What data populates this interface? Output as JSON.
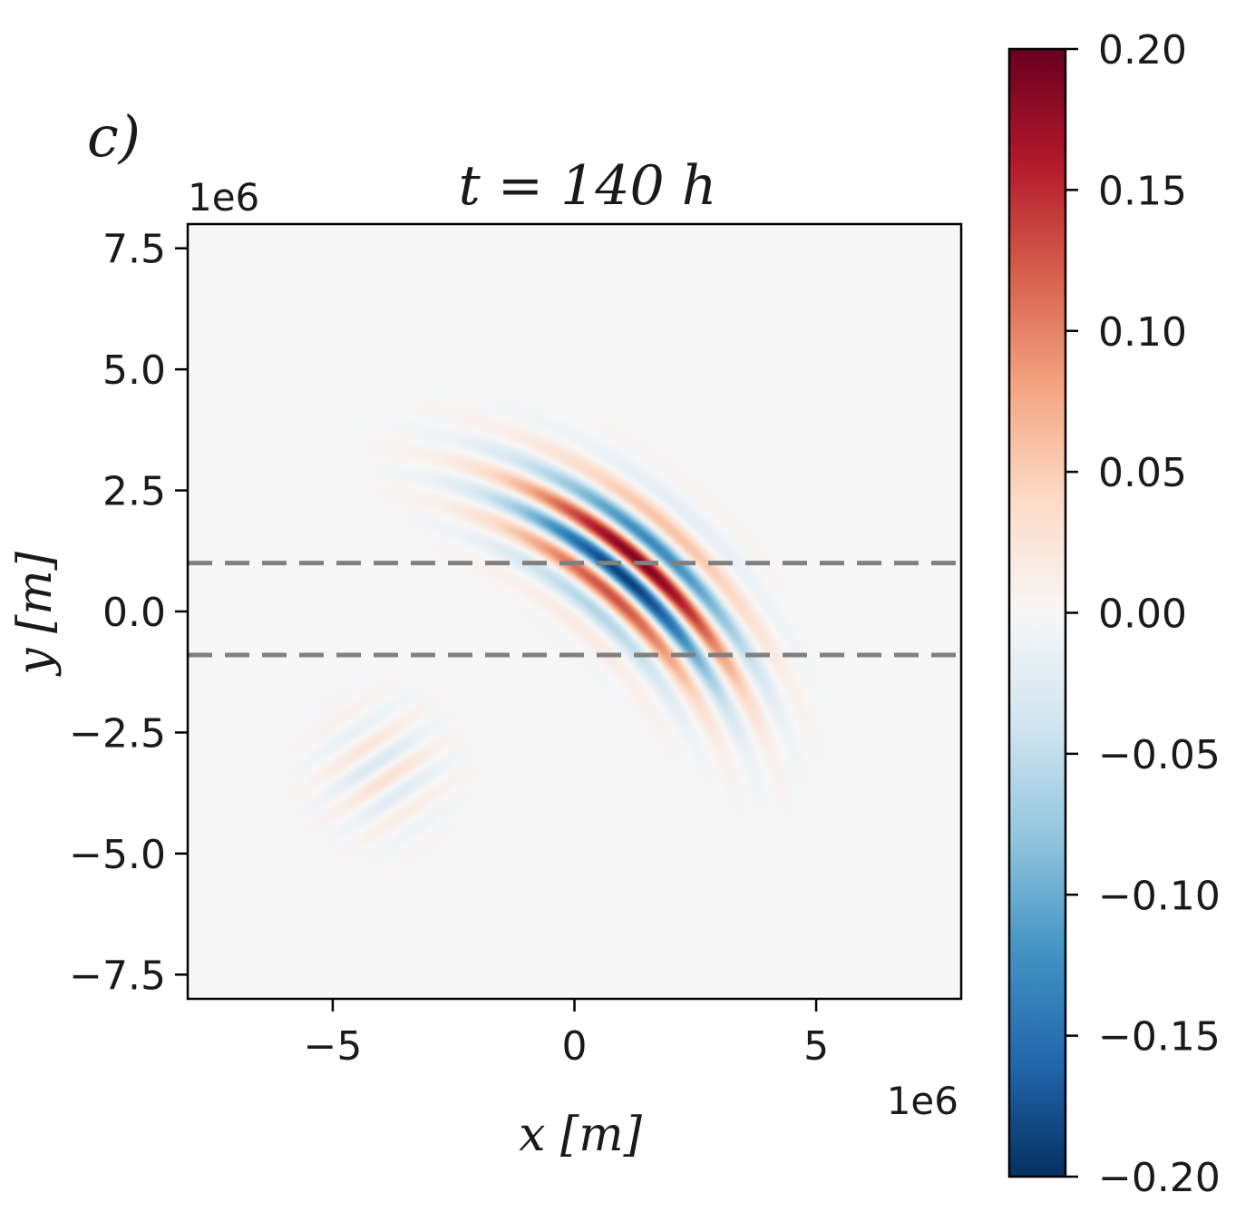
{
  "panel_label": "c)",
  "chart_data": {
    "type": "heatmap",
    "title": "t = 140 h",
    "xlabel": "x [m]",
    "ylabel": "y [m]",
    "x_offset": "1e6",
    "y_offset": "1e6",
    "xlim": [
      -8,
      8
    ],
    "ylim": [
      -8,
      8
    ],
    "x_ticks": [
      {
        "value": -5,
        "label": "−5"
      },
      {
        "value": 0,
        "label": "0"
      },
      {
        "value": 5,
        "label": "5"
      }
    ],
    "y_ticks": [
      {
        "value": 7.5,
        "label": "7.5"
      },
      {
        "value": 5.0,
        "label": "5.0"
      },
      {
        "value": 2.5,
        "label": "2.5"
      },
      {
        "value": 0.0,
        "label": "0.0"
      },
      {
        "value": -2.5,
        "label": "−2.5"
      },
      {
        "value": -5.0,
        "label": "−5.0"
      },
      {
        "value": -7.5,
        "label": "−7.5"
      }
    ],
    "reference_lines_y": [
      1.0,
      -0.9
    ],
    "reference_line_color": "#808080",
    "colormap": "RdBu_r",
    "colorbar": {
      "range": [
        -0.2,
        0.2
      ],
      "ticks": [
        {
          "value": 0.2,
          "label": "0.20"
        },
        {
          "value": 0.15,
          "label": "0.15"
        },
        {
          "value": 0.1,
          "label": "0.10"
        },
        {
          "value": 0.05,
          "label": "0.05"
        },
        {
          "value": 0.0,
          "label": "0.00"
        },
        {
          "value": -0.05,
          "label": "−0.05"
        },
        {
          "value": -0.1,
          "label": "−0.10"
        },
        {
          "value": -0.15,
          "label": "−0.15"
        },
        {
          "value": -0.2,
          "label": "−0.20"
        }
      ],
      "stops": [
        "#053061",
        "#2166ac",
        "#4393c3",
        "#92c5de",
        "#d1e5f0",
        "#f7f7f7",
        "#fddbc7",
        "#f4a582",
        "#d6604d",
        "#b2182b",
        "#67001f"
      ]
    },
    "wave_packets": [
      {
        "center_x": 0.0,
        "center_y": 1.6,
        "peak_amplitude": 0.2
      },
      {
        "center_x": -4.0,
        "center_y": -3.3,
        "peak_amplitude": 0.03
      }
    ]
  }
}
